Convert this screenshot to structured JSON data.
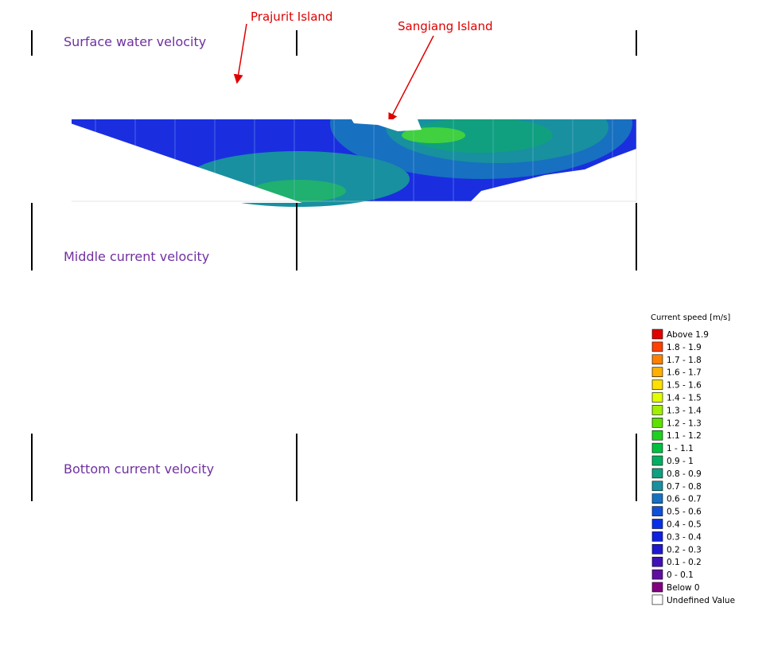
{
  "panels": [
    {
      "title": "Surface water velocity"
    },
    {
      "title": "Middle current velocity"
    },
    {
      "title": "Bottom current velocity"
    }
  ],
  "annotations": [
    {
      "label": "Prajurit Island"
    },
    {
      "label": "Sangiang Island"
    }
  ],
  "legend": {
    "title": "Current speed [m/s]",
    "items": [
      {
        "label": "Above 1.9",
        "color": "#e00000"
      },
      {
        "label": "1.8 - 1.9",
        "color": "#ff4000"
      },
      {
        "label": "1.7 - 1.8",
        "color": "#ff8000"
      },
      {
        "label": "1.6 - 1.7",
        "color": "#ffb000"
      },
      {
        "label": "1.5 - 1.6",
        "color": "#ffe000"
      },
      {
        "label": "1.4 - 1.5",
        "color": "#e0ff00"
      },
      {
        "label": "1.3 - 1.4",
        "color": "#a0f000"
      },
      {
        "label": "1.2 - 1.3",
        "color": "#60e000"
      },
      {
        "label": "1.1 - 1.2",
        "color": "#20d020"
      },
      {
        "label": "1 - 1.1",
        "color": "#00c040"
      },
      {
        "label": "0.9 -   1",
        "color": "#00b060"
      },
      {
        "label": "0.8 - 0.9",
        "color": "#10a080"
      },
      {
        "label": "0.7 - 0.8",
        "color": "#1890a0"
      },
      {
        "label": "0.6 - 0.7",
        "color": "#1870c0"
      },
      {
        "label": "0.5 - 0.6",
        "color": "#1050d8"
      },
      {
        "label": "0.4 - 0.5",
        "color": "#0830e8"
      },
      {
        "label": "0.3 - 0.4",
        "color": "#1020e0"
      },
      {
        "label": "0.2 - 0.3",
        "color": "#2018d0"
      },
      {
        "label": "0.1 - 0.2",
        "color": "#4010b8"
      },
      {
        "label": "0 - 0.1",
        "color": "#6010a0"
      },
      {
        "label": "Below   0",
        "color": "#800080"
      },
      {
        "label": "Undefined Value",
        "color": "#ffffff"
      }
    ]
  }
}
